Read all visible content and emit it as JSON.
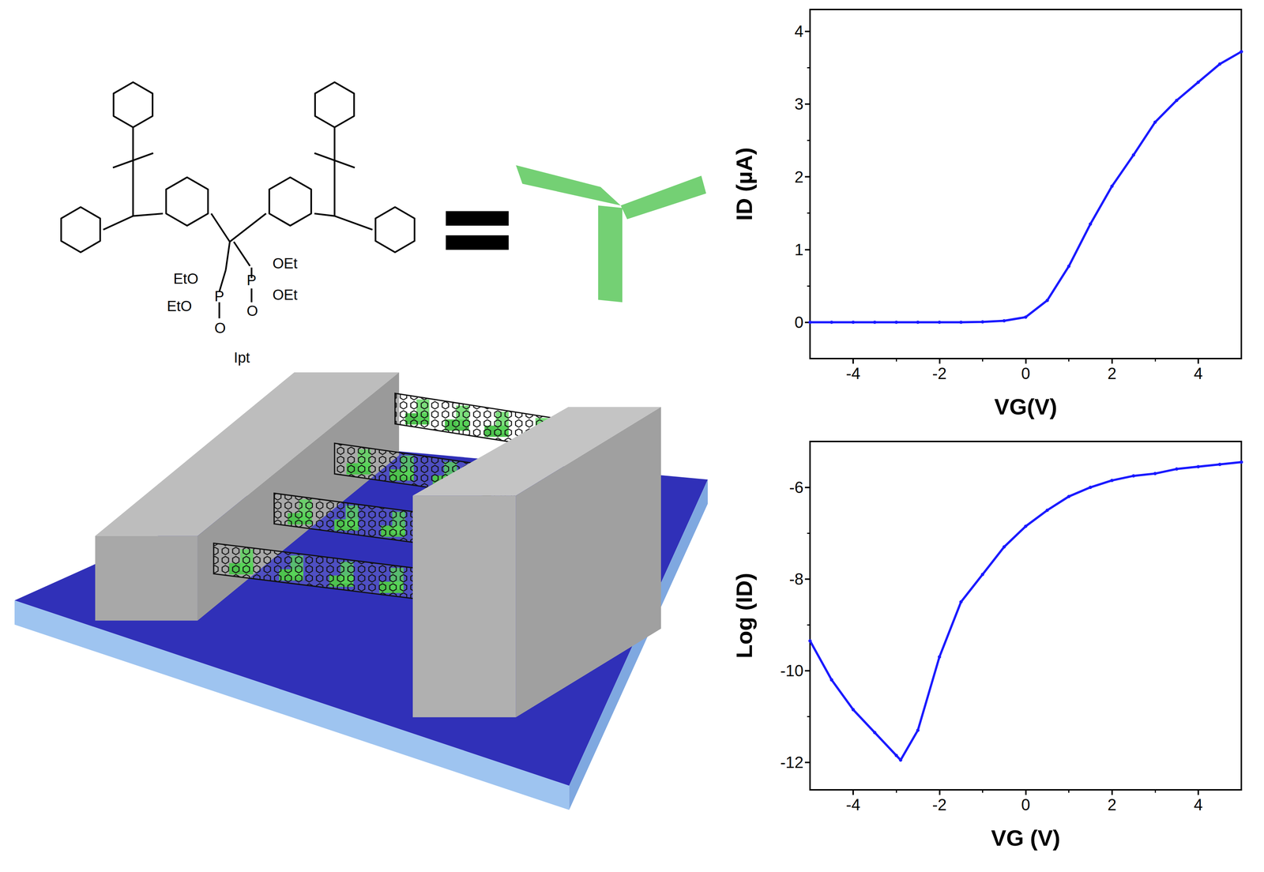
{
  "figure": {
    "molecule": {
      "name": "Ipt",
      "substituents": [
        "EtO",
        "EtO",
        "OEt",
        "OEt"
      ],
      "atoms": [
        "P",
        "P",
        "O",
        "O"
      ]
    }
  },
  "chart_data": [
    {
      "type": "line",
      "xlabel": "VG(V)",
      "ylabel": "ID (µA)",
      "xlim": [
        -5,
        5
      ],
      "xticks": [
        -4,
        -2,
        0,
        2,
        4
      ],
      "ylim": [
        -0.5,
        4.3
      ],
      "yticks": [
        0,
        1,
        2,
        3,
        4
      ],
      "color": "#1a1aff",
      "marker": "circle",
      "grid": false,
      "x": [
        -5,
        -4.5,
        -4,
        -3.5,
        -3,
        -2.5,
        -2,
        -1.5,
        -1,
        -0.5,
        0,
        0.5,
        1,
        1.5,
        2,
        2.5,
        3,
        3.5,
        4,
        4.5,
        5
      ],
      "values": [
        0,
        0,
        0,
        0,
        0,
        0,
        0,
        0,
        0.005,
        0.02,
        0.07,
        0.3,
        0.77,
        1.35,
        1.87,
        2.3,
        2.75,
        3.05,
        3.3,
        3.55,
        3.72
      ]
    },
    {
      "type": "line",
      "xlabel": "VG (V)",
      "ylabel": "Log (ID)",
      "xlim": [
        -5,
        5
      ],
      "xticks": [
        -4,
        -2,
        0,
        2,
        4
      ],
      "ylim": [
        -12.6,
        -5
      ],
      "yticks": [
        -12,
        -10,
        -8,
        -6
      ],
      "color": "#1a1aff",
      "marker": "circle",
      "grid": false,
      "x": [
        -5,
        -4.5,
        -4,
        -3.5,
        -3,
        -2.9,
        -2.5,
        -2,
        -1.5,
        -1,
        -0.5,
        0,
        0.5,
        1,
        1.5,
        2,
        2.5,
        3,
        3.5,
        4,
        4.5,
        5
      ],
      "values": [
        -9.35,
        -10.2,
        -10.85,
        -11.35,
        -11.85,
        -11.95,
        -11.3,
        -9.7,
        -8.5,
        -7.9,
        -7.3,
        -6.85,
        -6.5,
        -6.2,
        -6.0,
        -5.85,
        -5.75,
        -5.7,
        -5.6,
        -5.55,
        -5.5,
        -5.45
      ]
    }
  ]
}
